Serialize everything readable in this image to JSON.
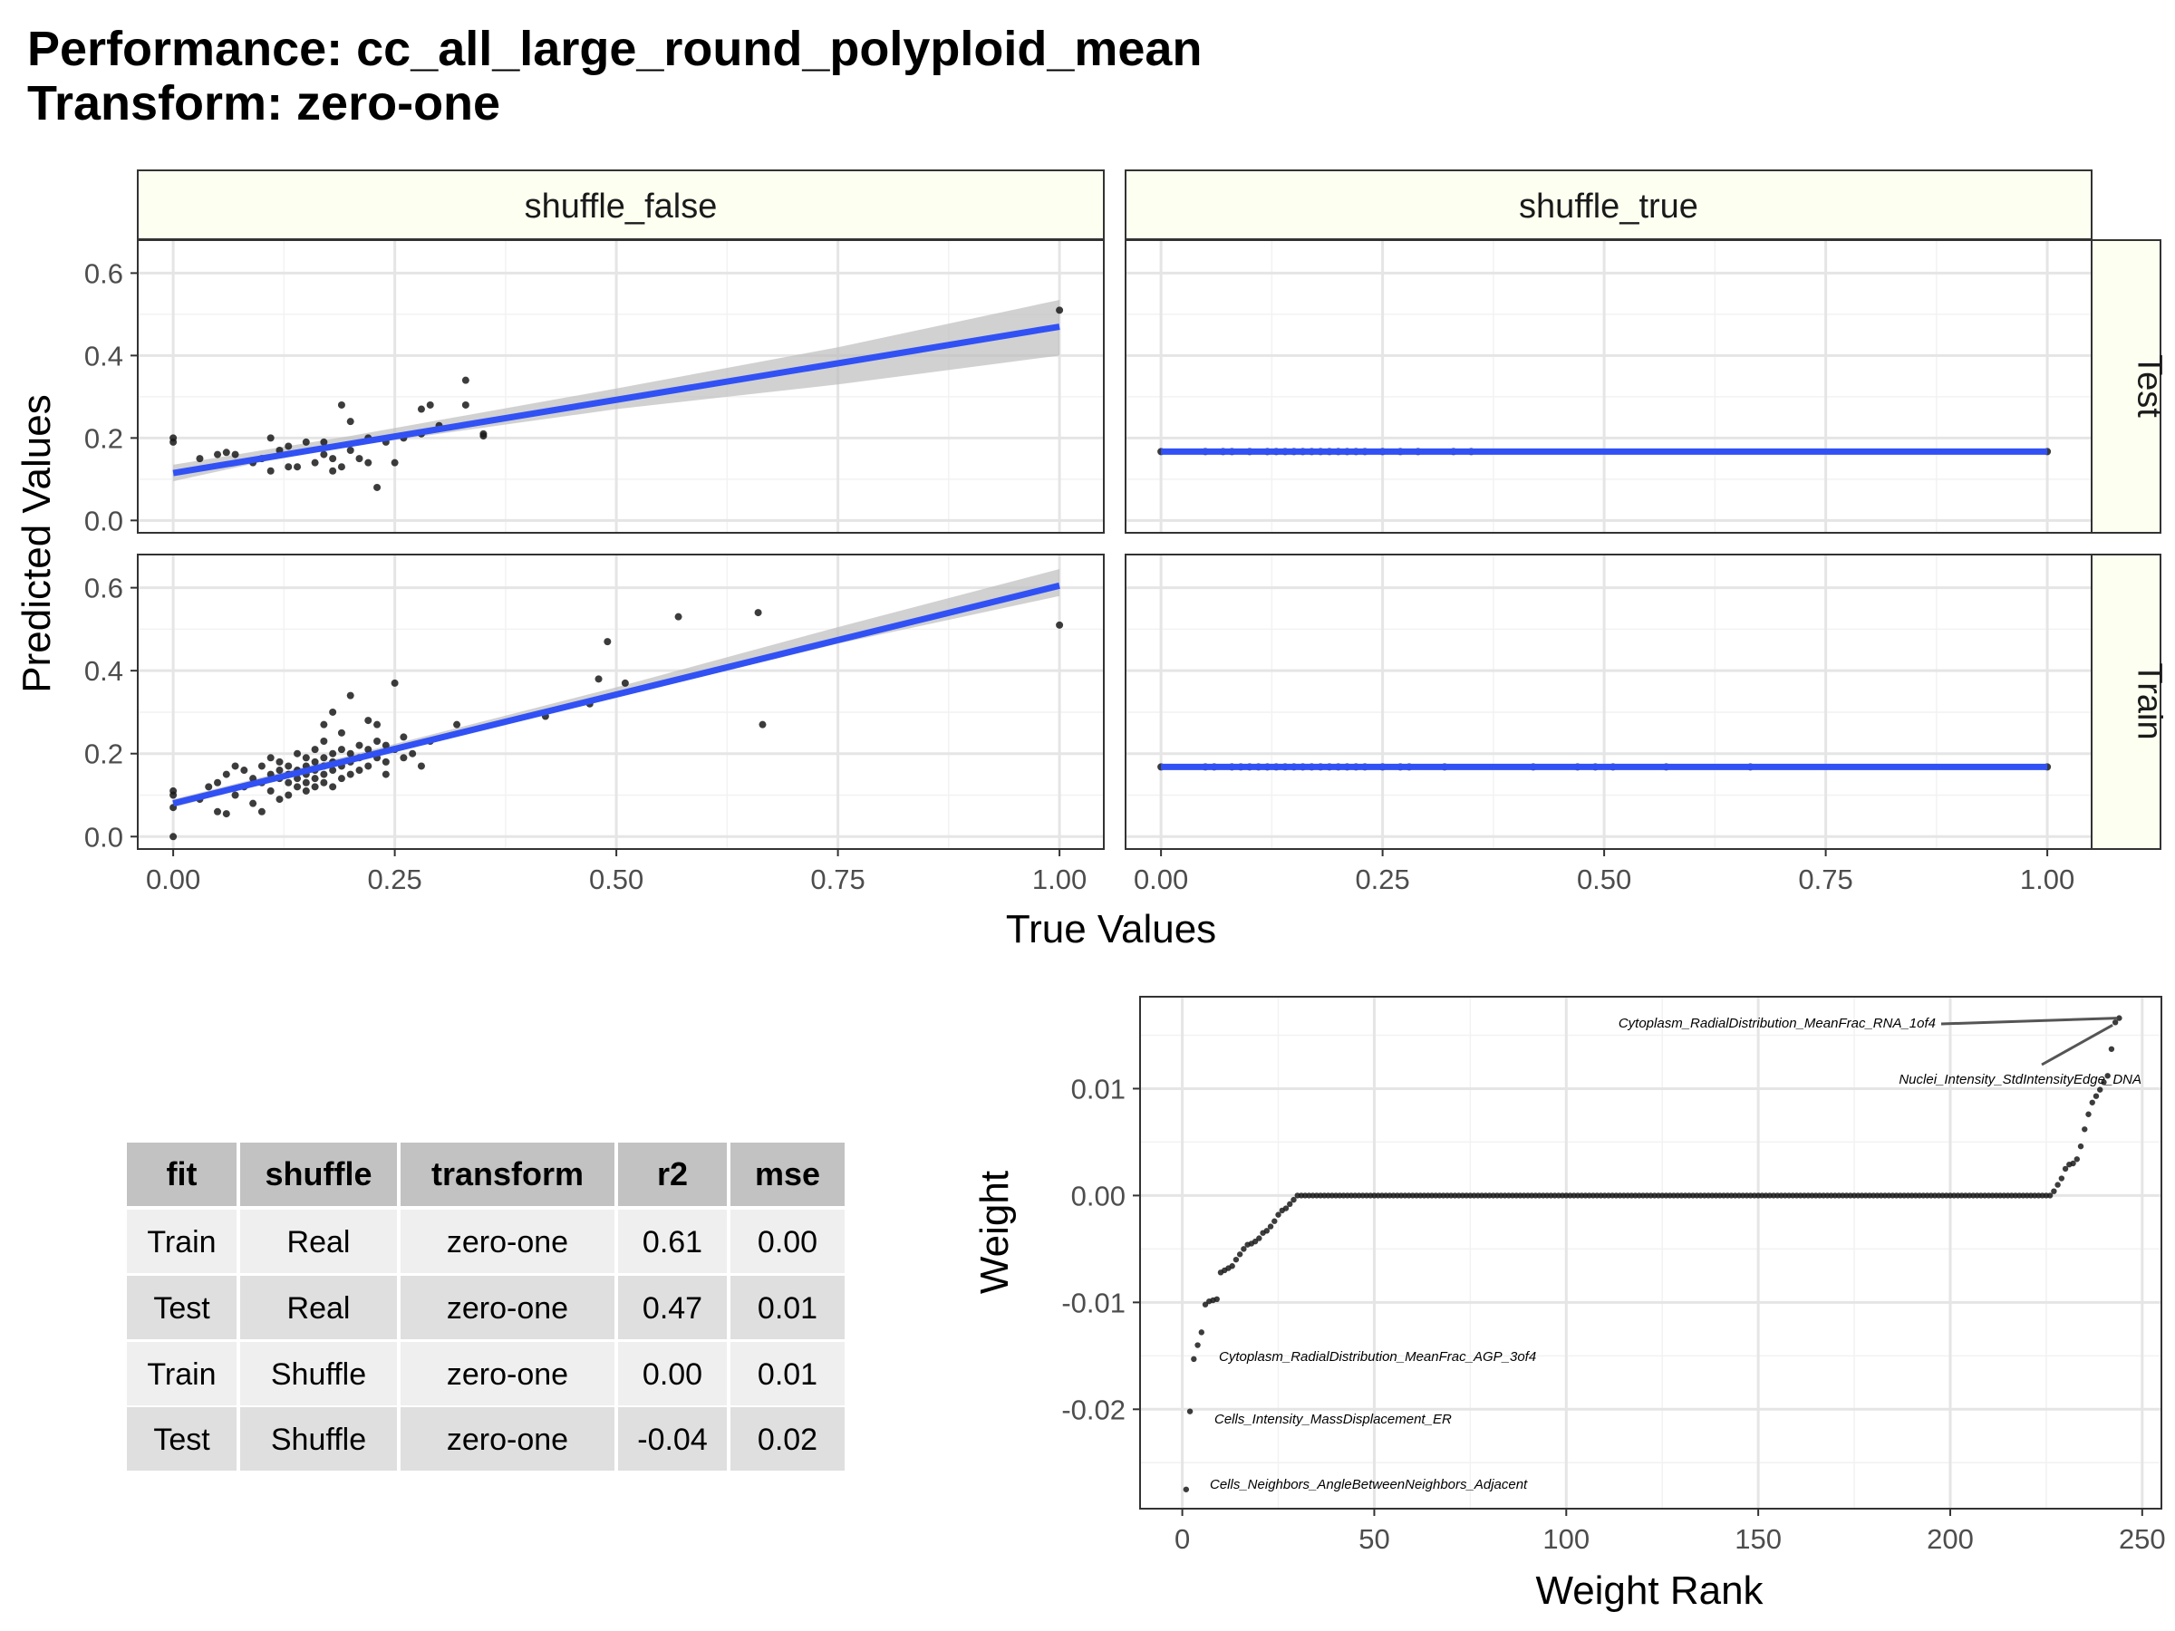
{
  "title": {
    "line1": "Performance: cc_all_large_round_polyploid_mean",
    "line2": "Transform: zero-one"
  },
  "scatter_panel": {
    "xlabel": "True Values",
    "ylabel": "Predicted Values",
    "column_labels": [
      "shuffle_false",
      "shuffle_true"
    ],
    "row_labels": [
      "Test",
      "Train"
    ],
    "x_ticks": [
      "0.00",
      "0.25",
      "0.50",
      "0.75",
      "1.00"
    ],
    "y_ticks": [
      "0.0",
      "0.2",
      "0.4",
      "0.6"
    ],
    "colors": {
      "points": "#1a1a1a",
      "fit_line": "#3151f5",
      "ribbon": "#bdbdbd",
      "strip_fill": "#fdfff0"
    }
  },
  "table": {
    "headers": [
      "fit",
      "shuffle",
      "transform",
      "r2",
      "mse"
    ],
    "rows": [
      [
        "Train",
        "Real",
        "zero-one",
        "0.61",
        "0.00"
      ],
      [
        "Test",
        "Real",
        "zero-one",
        "0.47",
        "0.01"
      ],
      [
        "Train",
        "Shuffle",
        "zero-one",
        "0.00",
        "0.01"
      ],
      [
        "Test",
        "Shuffle",
        "zero-one",
        "-0.04",
        "0.02"
      ]
    ]
  },
  "weight_panel": {
    "xlabel": "Weight Rank",
    "ylabel": "Weight",
    "x_ticks": [
      "0",
      "50",
      "100",
      "150",
      "200",
      "250"
    ],
    "y_ticks": [
      "0.01",
      "0.00",
      "-0.01",
      "-0.02"
    ],
    "annotations": [
      "Cytoplasm_RadialDistribution_MeanFrac_RNA_1of4",
      "Nuclei_Intensity_StdIntensityEdge_DNA",
      "Cytoplasm_RadialDistribution_MeanFrac_AGP_3of4",
      "Cells_Intensity_MassDisplacement_ER",
      "Cells_Neighbors_AngleBetweenNeighbors_Adjacent"
    ]
  },
  "chart_data": [
    {
      "type": "scatter",
      "facet": {
        "column": "shuffle_false",
        "row": "Test"
      },
      "xlim": [
        -0.04,
        1.05
      ],
      "ylim": [
        -0.03,
        0.68
      ],
      "fit": {
        "x": [
          0.0,
          1.0
        ],
        "y": [
          0.115,
          0.47
        ]
      },
      "ribbon": {
        "x": [
          0.0,
          0.1,
          0.2,
          0.5,
          0.75,
          1.0
        ],
        "lower": [
          0.095,
          0.142,
          0.18,
          0.27,
          0.33,
          0.4
        ],
        "upper": [
          0.135,
          0.17,
          0.205,
          0.32,
          0.42,
          0.535
        ]
      },
      "points": [
        [
          0.0,
          0.19
        ],
        [
          0.0,
          0.2
        ],
        [
          0.03,
          0.15
        ],
        [
          0.05,
          0.16
        ],
        [
          0.06,
          0.165
        ],
        [
          0.07,
          0.16
        ],
        [
          0.09,
          0.14
        ],
        [
          0.1,
          0.15
        ],
        [
          0.11,
          0.12
        ],
        [
          0.11,
          0.2
        ],
        [
          0.12,
          0.17
        ],
        [
          0.13,
          0.18
        ],
        [
          0.13,
          0.13
        ],
        [
          0.14,
          0.13
        ],
        [
          0.15,
          0.19
        ],
        [
          0.16,
          0.14
        ],
        [
          0.17,
          0.16
        ],
        [
          0.17,
          0.19
        ],
        [
          0.18,
          0.12
        ],
        [
          0.18,
          0.15
        ],
        [
          0.19,
          0.13
        ],
        [
          0.19,
          0.28
        ],
        [
          0.2,
          0.17
        ],
        [
          0.2,
          0.24
        ],
        [
          0.21,
          0.15
        ],
        [
          0.22,
          0.14
        ],
        [
          0.22,
          0.2
        ],
        [
          0.23,
          0.08
        ],
        [
          0.24,
          0.19
        ],
        [
          0.25,
          0.14
        ],
        [
          0.26,
          0.2
        ],
        [
          0.28,
          0.21
        ],
        [
          0.28,
          0.27
        ],
        [
          0.29,
          0.28
        ],
        [
          0.3,
          0.23
        ],
        [
          0.33,
          0.34
        ],
        [
          0.33,
          0.28
        ],
        [
          0.35,
          0.21
        ],
        [
          0.35,
          0.205
        ],
        [
          1.0,
          0.51
        ]
      ]
    },
    {
      "type": "scatter",
      "facet": {
        "column": "shuffle_true",
        "row": "Test"
      },
      "xlim": [
        -0.04,
        1.05
      ],
      "ylim": [
        -0.03,
        0.68
      ],
      "fit": {
        "x": [
          0.0,
          1.0
        ],
        "y": [
          0.167,
          0.167
        ]
      },
      "points": [
        [
          0.0,
          0.167
        ],
        [
          0.05,
          0.167
        ],
        [
          0.07,
          0.167
        ],
        [
          0.08,
          0.167
        ],
        [
          0.1,
          0.167
        ],
        [
          0.12,
          0.167
        ],
        [
          0.13,
          0.167
        ],
        [
          0.14,
          0.167
        ],
        [
          0.15,
          0.167
        ],
        [
          0.16,
          0.167
        ],
        [
          0.17,
          0.167
        ],
        [
          0.18,
          0.167
        ],
        [
          0.19,
          0.167
        ],
        [
          0.2,
          0.167
        ],
        [
          0.21,
          0.167
        ],
        [
          0.22,
          0.167
        ],
        [
          0.23,
          0.167
        ],
        [
          0.25,
          0.167
        ],
        [
          0.27,
          0.167
        ],
        [
          0.29,
          0.167
        ],
        [
          0.33,
          0.167
        ],
        [
          0.35,
          0.167
        ],
        [
          1.0,
          0.167
        ]
      ]
    },
    {
      "type": "scatter",
      "facet": {
        "column": "shuffle_false",
        "row": "Train"
      },
      "xlim": [
        -0.04,
        1.05
      ],
      "ylim": [
        -0.03,
        0.68
      ],
      "fit": {
        "x": [
          0.0,
          1.0
        ],
        "y": [
          0.08,
          0.605
        ]
      },
      "ribbon": {
        "x": [
          0.0,
          0.1,
          0.2,
          0.5,
          0.75,
          1.0
        ],
        "lower": [
          0.07,
          0.127,
          0.18,
          0.335,
          0.465,
          0.58
        ],
        "upper": [
          0.09,
          0.143,
          0.196,
          0.36,
          0.505,
          0.645
        ]
      },
      "points": [
        [
          0.0,
          0.0
        ],
        [
          0.0,
          0.07
        ],
        [
          0.0,
          0.1
        ],
        [
          0.0,
          0.11
        ],
        [
          0.03,
          0.09
        ],
        [
          0.04,
          0.12
        ],
        [
          0.05,
          0.06
        ],
        [
          0.05,
          0.13
        ],
        [
          0.06,
          0.055
        ],
        [
          0.06,
          0.15
        ],
        [
          0.07,
          0.17
        ],
        [
          0.07,
          0.1
        ],
        [
          0.08,
          0.12
        ],
        [
          0.08,
          0.16
        ],
        [
          0.09,
          0.14
        ],
        [
          0.09,
          0.08
        ],
        [
          0.1,
          0.06
        ],
        [
          0.1,
          0.13
        ],
        [
          0.1,
          0.17
        ],
        [
          0.11,
          0.11
        ],
        [
          0.11,
          0.15
        ],
        [
          0.11,
          0.19
        ],
        [
          0.12,
          0.14
        ],
        [
          0.12,
          0.16
        ],
        [
          0.12,
          0.18
        ],
        [
          0.12,
          0.09
        ],
        [
          0.13,
          0.1
        ],
        [
          0.13,
          0.13
        ],
        [
          0.13,
          0.15
        ],
        [
          0.13,
          0.17
        ],
        [
          0.14,
          0.12
        ],
        [
          0.14,
          0.14
        ],
        [
          0.14,
          0.16
        ],
        [
          0.14,
          0.2
        ],
        [
          0.15,
          0.11
        ],
        [
          0.15,
          0.13
        ],
        [
          0.15,
          0.15
        ],
        [
          0.15,
          0.17
        ],
        [
          0.15,
          0.19
        ],
        [
          0.16,
          0.12
        ],
        [
          0.16,
          0.14
        ],
        [
          0.16,
          0.16
        ],
        [
          0.16,
          0.18
        ],
        [
          0.16,
          0.21
        ],
        [
          0.17,
          0.13
        ],
        [
          0.17,
          0.15
        ],
        [
          0.17,
          0.17
        ],
        [
          0.17,
          0.19
        ],
        [
          0.17,
          0.23
        ],
        [
          0.17,
          0.27
        ],
        [
          0.18,
          0.12
        ],
        [
          0.18,
          0.16
        ],
        [
          0.18,
          0.18
        ],
        [
          0.18,
          0.2
        ],
        [
          0.18,
          0.3
        ],
        [
          0.19,
          0.14
        ],
        [
          0.19,
          0.17
        ],
        [
          0.19,
          0.21
        ],
        [
          0.19,
          0.25
        ],
        [
          0.2,
          0.15
        ],
        [
          0.2,
          0.18
        ],
        [
          0.2,
          0.2
        ],
        [
          0.2,
          0.34
        ],
        [
          0.21,
          0.16
        ],
        [
          0.21,
          0.19
        ],
        [
          0.21,
          0.22
        ],
        [
          0.22,
          0.17
        ],
        [
          0.22,
          0.21
        ],
        [
          0.22,
          0.28
        ],
        [
          0.23,
          0.19
        ],
        [
          0.23,
          0.23
        ],
        [
          0.23,
          0.27
        ],
        [
          0.24,
          0.18
        ],
        [
          0.24,
          0.22
        ],
        [
          0.24,
          0.15
        ],
        [
          0.25,
          0.21
        ],
        [
          0.25,
          0.37
        ],
        [
          0.26,
          0.19
        ],
        [
          0.26,
          0.24
        ],
        [
          0.27,
          0.2
        ],
        [
          0.28,
          0.17
        ],
        [
          0.29,
          0.23
        ],
        [
          0.32,
          0.27
        ],
        [
          0.42,
          0.29
        ],
        [
          0.47,
          0.32
        ],
        [
          0.48,
          0.38
        ],
        [
          0.49,
          0.47
        ],
        [
          0.51,
          0.37
        ],
        [
          0.57,
          0.53
        ],
        [
          0.66,
          0.54
        ],
        [
          0.665,
          0.27
        ],
        [
          1.0,
          0.51
        ]
      ]
    },
    {
      "type": "scatter",
      "facet": {
        "column": "shuffle_true",
        "row": "Train"
      },
      "xlim": [
        -0.04,
        1.05
      ],
      "ylim": [
        -0.03,
        0.68
      ],
      "fit": {
        "x": [
          0.0,
          1.0
        ],
        "y": [
          0.168,
          0.168
        ]
      },
      "points": [
        [
          0.0,
          0.168
        ],
        [
          0.05,
          0.168
        ],
        [
          0.06,
          0.168
        ],
        [
          0.08,
          0.168
        ],
        [
          0.09,
          0.168
        ],
        [
          0.1,
          0.168
        ],
        [
          0.11,
          0.168
        ],
        [
          0.12,
          0.168
        ],
        [
          0.13,
          0.168
        ],
        [
          0.14,
          0.168
        ],
        [
          0.15,
          0.168
        ],
        [
          0.16,
          0.168
        ],
        [
          0.17,
          0.168
        ],
        [
          0.18,
          0.168
        ],
        [
          0.19,
          0.168
        ],
        [
          0.2,
          0.168
        ],
        [
          0.21,
          0.168
        ],
        [
          0.22,
          0.168
        ],
        [
          0.23,
          0.168
        ],
        [
          0.25,
          0.168
        ],
        [
          0.27,
          0.168
        ],
        [
          0.28,
          0.168
        ],
        [
          0.32,
          0.168
        ],
        [
          0.42,
          0.168
        ],
        [
          0.47,
          0.168
        ],
        [
          0.49,
          0.168
        ],
        [
          0.51,
          0.168
        ],
        [
          0.57,
          0.168
        ],
        [
          0.665,
          0.168
        ],
        [
          1.0,
          0.168
        ]
      ]
    },
    {
      "type": "scatter",
      "name": "weights",
      "xlim": [
        -11,
        255
      ],
      "ylim": [
        -0.0293,
        0.0186
      ],
      "neg_ranks": [
        1,
        2,
        3,
        4,
        5,
        6,
        7,
        8,
        9,
        10,
        11,
        12,
        13,
        14,
        15,
        16,
        17,
        18,
        19,
        20,
        21,
        22,
        23,
        24,
        25,
        26,
        27,
        28,
        29
      ],
      "neg_values": [
        -0.0275,
        -0.0202,
        -0.0153,
        -0.014,
        -0.0128,
        -0.0102,
        -0.0099,
        -0.0098,
        -0.0097,
        -0.0072,
        -0.007,
        -0.0068,
        -0.0066,
        -0.006,
        -0.0055,
        -0.005,
        -0.0046,
        -0.0045,
        -0.0043,
        -0.004,
        -0.0035,
        -0.0033,
        -0.0029,
        -0.0024,
        -0.0018,
        -0.0014,
        -0.0012,
        -0.0008,
        -0.0004
      ],
      "zero_range": [
        30,
        226
      ],
      "pos_ranks": [
        227,
        228,
        229,
        230,
        231,
        232,
        233,
        234,
        235,
        236,
        237,
        238,
        239,
        240,
        241,
        242,
        243,
        244
      ],
      "pos_values": [
        0.0004,
        0.001,
        0.0016,
        0.0025,
        0.0029,
        0.003,
        0.0034,
        0.0046,
        0.0062,
        0.0076,
        0.0087,
        0.0093,
        0.0099,
        0.0106,
        0.0112,
        0.0137,
        0.0162,
        0.0166
      ],
      "annotations": [
        {
          "label": "Cytoplasm_RadialDistribution_MeanFrac_RNA_1of4",
          "x": 244,
          "y": 0.0166
        },
        {
          "label": "Nuclei_Intensity_StdIntensityEdge_DNA",
          "x": 243,
          "y": 0.0162
        },
        {
          "label": "Cytoplasm_RadialDistribution_MeanFrac_AGP_3of4",
          "x": 3,
          "y": -0.0153
        },
        {
          "label": "Cells_Intensity_MassDisplacement_ER",
          "x": 2,
          "y": -0.0202
        },
        {
          "label": "Cells_Neighbors_AngleBetweenNeighbors_Adjacent",
          "x": 1,
          "y": -0.0275
        }
      ]
    }
  ]
}
